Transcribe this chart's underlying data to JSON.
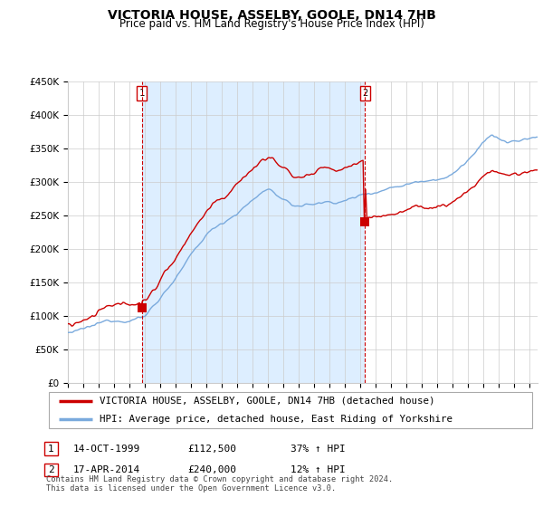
{
  "title": "VICTORIA HOUSE, ASSELBY, GOOLE, DN14 7HB",
  "subtitle": "Price paid vs. HM Land Registry's House Price Index (HPI)",
  "ylim": [
    0,
    450000
  ],
  "yticks": [
    0,
    50000,
    100000,
    150000,
    200000,
    250000,
    300000,
    350000,
    400000,
    450000
  ],
  "ytick_labels": [
    "£0",
    "£50K",
    "£100K",
    "£150K",
    "£200K",
    "£250K",
    "£300K",
    "£350K",
    "£400K",
    "£450K"
  ],
  "sale1_year": 1999.79,
  "sale1_price": 112500,
  "sale2_year": 2014.29,
  "sale2_price": 240000,
  "legend_line1": "VICTORIA HOUSE, ASSELBY, GOOLE, DN14 7HB (detached house)",
  "legend_line2": "HPI: Average price, detached house, East Riding of Yorkshire",
  "table_row1": [
    "1",
    "14-OCT-1999",
    "£112,500",
    "37% ↑ HPI"
  ],
  "table_row2": [
    "2",
    "17-APR-2014",
    "£240,000",
    "12% ↑ HPI"
  ],
  "footnote": "Contains HM Land Registry data © Crown copyright and database right 2024.\nThis data is licensed under the Open Government Licence v3.0.",
  "line_color_red": "#cc0000",
  "line_color_blue": "#7aaadd",
  "shade_color": "#ddeeff",
  "vline_color": "#cc0000",
  "grid_color": "#cccccc",
  "xlim_start": 1995.0,
  "xlim_end": 2025.5
}
